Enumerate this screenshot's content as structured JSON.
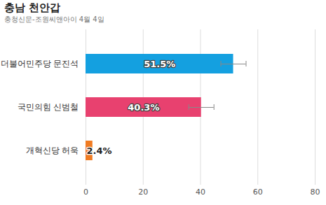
{
  "chart_data": {
    "type": "bar",
    "orientation": "horizontal",
    "title": "충남 천안갑",
    "subtitle": "충청신문-조원씨앤아이 4월 4일",
    "categories": [
      "더불어민주당 문진석",
      "국민의힘 신범철",
      "개혁신당 허욱"
    ],
    "values": [
      51.5,
      40.3,
      2.4
    ],
    "value_labels": [
      "51.5%",
      "40.3%",
      "2.4%"
    ],
    "colors": [
      "#14a0e0",
      "#e8416f",
      "#f07b22"
    ],
    "error": [
      4.4,
      4.4,
      null
    ],
    "xlim": [
      0,
      80
    ],
    "xticks": [
      0,
      20,
      40,
      60,
      80
    ],
    "grid": true,
    "data_labels": true
  }
}
